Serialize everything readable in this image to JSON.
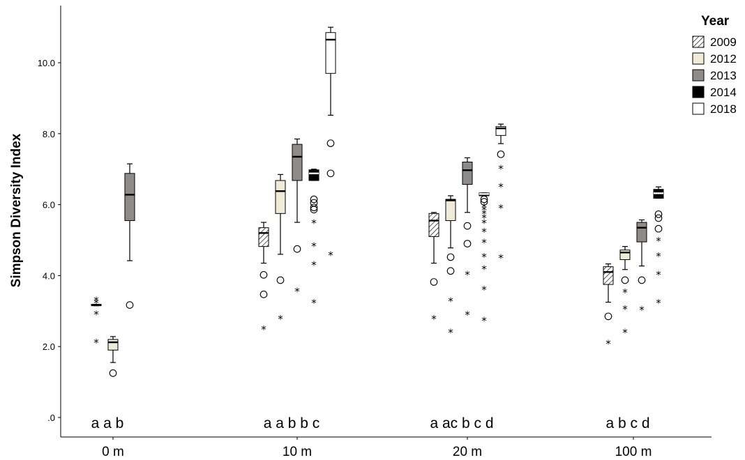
{
  "chart_data": {
    "type": "box",
    "title": "",
    "xlabel": "",
    "ylabel": "Simpson Diversity Index",
    "ylim": [
      0,
      11.2
    ],
    "yticks": [
      {
        "value": 0,
        "label": ".0"
      },
      {
        "value": 2,
        "label": "2.0"
      },
      {
        "value": 4,
        "label": "4.0"
      },
      {
        "value": 6,
        "label": "6.0"
      },
      {
        "value": 8,
        "label": "8.0"
      },
      {
        "value": 10,
        "label": "10.0"
      }
    ],
    "categories": [
      "0 m",
      "10 m",
      "20 m",
      "100 m"
    ],
    "legend": {
      "title": "Year",
      "position": "top-right",
      "entries": [
        {
          "label": "2009",
          "fill": "hatch"
        },
        {
          "label": "2012",
          "fill": "#f0ebd8"
        },
        {
          "label": "2013",
          "fill": "#8f8b8b"
        },
        {
          "label": "2014",
          "fill": "#000000"
        },
        {
          "label": "2018",
          "fill": "#ffffff"
        }
      ]
    },
    "group_letters": [
      "a a b",
      "a a b b c",
      "a ac b c d",
      "a b c d"
    ],
    "groups": [
      {
        "category": "0 m",
        "boxes": [
          {
            "year": "2009",
            "slot": 0,
            "q1": 3.15,
            "median": 3.17,
            "q3": 3.19,
            "wlo": 3.15,
            "whi": 3.19,
            "outliers": [],
            "extremes": [
              3.37,
              3.3,
              2.98,
              2.18
            ]
          },
          {
            "year": "2012",
            "slot": 1,
            "q1": 1.9,
            "median": 2.12,
            "q3": 2.2,
            "wlo": 1.55,
            "whi": 2.28,
            "outliers": [
              1.25
            ],
            "extremes": []
          },
          {
            "year": "2013",
            "slot": 2,
            "q1": 5.55,
            "median": 6.28,
            "q3": 6.88,
            "wlo": 4.42,
            "whi": 7.15,
            "outliers": [
              3.17
            ],
            "extremes": []
          }
        ]
      },
      {
        "category": "10 m",
        "boxes": [
          {
            "year": "2009",
            "slot": 0,
            "q1": 4.82,
            "median": 5.2,
            "q3": 5.35,
            "wlo": 4.35,
            "whi": 5.5,
            "outliers": [
              4.02,
              3.47
            ],
            "extremes": [
              2.55
            ]
          },
          {
            "year": "2012",
            "slot": 1,
            "q1": 5.75,
            "median": 6.38,
            "q3": 6.68,
            "wlo": 4.6,
            "whi": 6.85,
            "outliers": [
              3.87
            ],
            "extremes": [
              2.85
            ]
          },
          {
            "year": "2013",
            "slot": 2,
            "q1": 6.68,
            "median": 7.35,
            "q3": 7.7,
            "wlo": 5.5,
            "whi": 7.85,
            "outliers": [
              4.75
            ],
            "extremes": [
              3.62
            ]
          },
          {
            "year": "2014",
            "slot": 3,
            "q1": 6.68,
            "median": 6.88,
            "q3": 6.98,
            "wlo": 6.68,
            "whi": 7.0,
            "outliers": [
              6.15,
              6.05,
              5.92,
              5.86
            ],
            "extremes": [
              5.55,
              4.9,
              4.37,
              3.3
            ]
          },
          {
            "year": "2018",
            "slot": 4,
            "q1": 9.7,
            "median": 10.65,
            "q3": 10.85,
            "wlo": 8.52,
            "whi": 11.0,
            "outliers": [
              7.73,
              6.88
            ],
            "extremes": [
              4.65
            ]
          }
        ]
      },
      {
        "category": "20 m",
        "boxes": [
          {
            "year": "2009",
            "slot": 0,
            "q1": 5.1,
            "median": 5.55,
            "q3": 5.75,
            "wlo": 4.35,
            "whi": 5.78,
            "outliers": [
              3.82
            ],
            "extremes": [
              2.85
            ]
          },
          {
            "year": "2012",
            "slot": 1,
            "q1": 5.55,
            "median": 6.12,
            "q3": 6.15,
            "wlo": 4.78,
            "whi": 6.25,
            "outliers": [
              4.52,
              4.13
            ],
            "extremes": [
              3.35,
              2.47
            ]
          },
          {
            "year": "2013",
            "slot": 2,
            "q1": 6.57,
            "median": 6.97,
            "q3": 7.2,
            "wlo": 5.78,
            "whi": 7.32,
            "outliers": [
              5.4,
              4.9
            ],
            "extremes": [
              4.1,
              2.97
            ]
          },
          {
            "year": "2014",
            "slot": 3,
            "q1": 6.25,
            "median": 6.3,
            "q3": 6.33,
            "wlo": 6.25,
            "whi": 6.33,
            "outliers": [
              6.15,
              6.08
            ],
            "extremes": [
              6.0,
              5.92,
              5.82,
              5.7,
              5.55,
              5.3,
              5.0,
              4.6,
              4.25,
              3.67,
              2.8
            ]
          },
          {
            "year": "2018",
            "slot": 4,
            "q1": 7.95,
            "median": 8.15,
            "q3": 8.2,
            "wlo": 7.72,
            "whi": 8.27,
            "outliers": [
              7.42
            ],
            "extremes": [
              7.08,
              6.57,
              5.97,
              4.57
            ]
          }
        ]
      },
      {
        "category": "100 m",
        "boxes": [
          {
            "year": "2009",
            "slot": 0,
            "q1": 3.75,
            "median": 4.1,
            "q3": 4.25,
            "wlo": 3.25,
            "whi": 4.33,
            "outliers": [
              2.85
            ],
            "extremes": [
              2.15
            ]
          },
          {
            "year": "2012",
            "slot": 1,
            "q1": 4.45,
            "median": 4.65,
            "q3": 4.72,
            "wlo": 4.17,
            "whi": 4.82,
            "outliers": [
              3.87
            ],
            "extremes": [
              3.6,
              3.12,
              2.47
            ]
          },
          {
            "year": "2013",
            "slot": 2,
            "q1": 4.95,
            "median": 5.35,
            "q3": 5.5,
            "wlo": 4.27,
            "whi": 5.57,
            "outliers": [
              3.87
            ],
            "extremes": [
              3.1
            ]
          },
          {
            "year": "2014",
            "slot": 3,
            "q1": 6.18,
            "median": 6.32,
            "q3": 6.43,
            "wlo": 6.18,
            "whi": 6.5,
            "outliers": [
              5.73,
              5.62,
              5.32
            ],
            "extremes": [
              5.05,
              4.62,
              4.1,
              3.3
            ]
          }
        ]
      }
    ]
  }
}
